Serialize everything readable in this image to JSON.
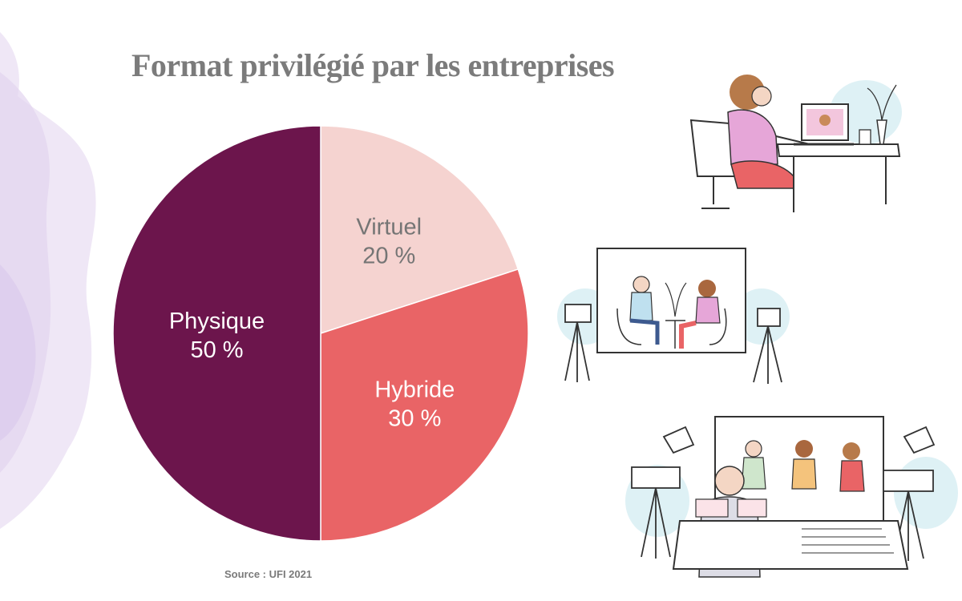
{
  "title": "Format privilégié par les entreprises",
  "source": "Source : UFI 2021",
  "chart_data": {
    "type": "pie",
    "title": "Format privilégié par les entreprises",
    "slices": [
      {
        "label": "Virtuel",
        "value": 20,
        "value_label": "20 %",
        "color": "#f5d3d0",
        "text_color": "#757575"
      },
      {
        "label": "Hybride",
        "value": 30,
        "value_label": "30 %",
        "color": "#e96466",
        "text_color": "#ffffff"
      },
      {
        "label": "Physique",
        "value": 50,
        "value_label": "50 %",
        "color": "#6c154c",
        "text_color": "#ffffff"
      }
    ],
    "start_angle_deg": 0,
    "direction": "clockwise",
    "legend": "none"
  },
  "colors": {
    "title": "#7b7b7b",
    "source": "#7a7a7a",
    "background_accent": "#e7dcf1"
  },
  "illustrations": [
    {
      "name": "online-meeting-illustration"
    },
    {
      "name": "interview-studio-illustration"
    },
    {
      "name": "broadcast-studio-illustration"
    }
  ]
}
